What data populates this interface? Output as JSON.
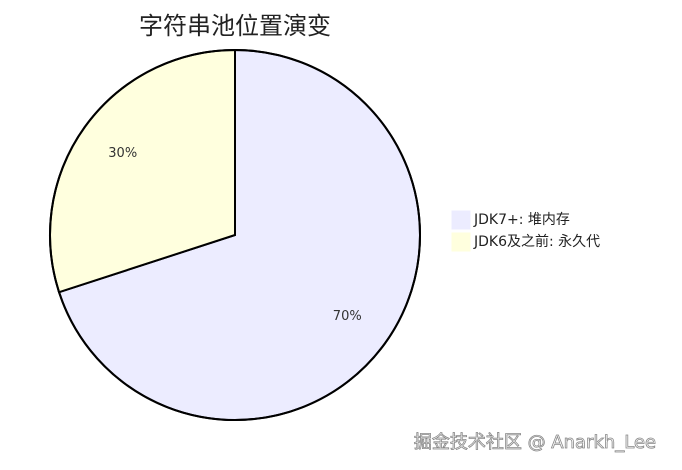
{
  "chart_data": {
    "type": "pie",
    "title": "字符串池位置演变",
    "categories": [
      "JDK7+: 堆内存",
      "JDK6及之前: 永久代"
    ],
    "values": [
      70,
      30
    ],
    "value_labels": [
      "70%",
      "30%"
    ],
    "colors": [
      "#ececff",
      "#ffffde"
    ],
    "legend": "right"
  },
  "watermark": "掘金技术社区 @ Anarkh_Lee"
}
